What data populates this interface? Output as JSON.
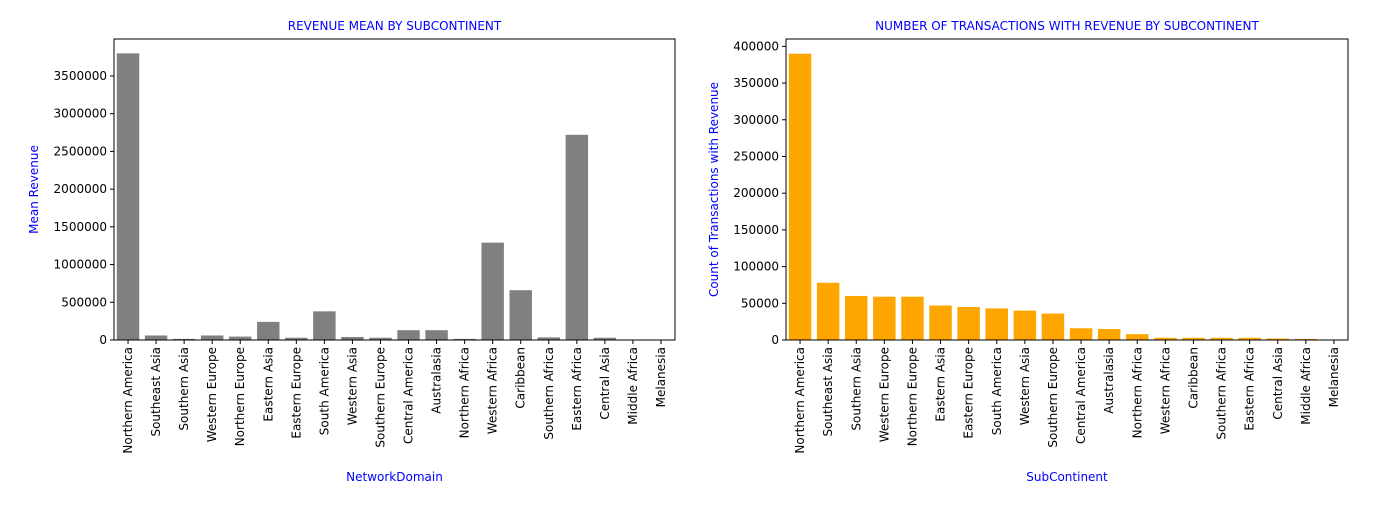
{
  "chart_data": [
    {
      "type": "bar",
      "title": "REVENUE MEAN BY SUBCONTINENT",
      "xlabel": "NetworkDomain",
      "ylabel": "Mean Revenue",
      "color": "#808080",
      "label_color": "#0000ff",
      "ylim": [
        0,
        3990000
      ],
      "yticks": [
        0,
        500000,
        1000000,
        1500000,
        2000000,
        2500000,
        3000000,
        3500000
      ],
      "categories": [
        "Northern America",
        "Southeast Asia",
        "Southern Asia",
        "Western Europe",
        "Northern Europe",
        "Eastern Asia",
        "Eastern Europe",
        "South America",
        "Western Asia",
        "Southern Europe",
        "Central America",
        "Australasia",
        "Northern Africa",
        "Western Africa",
        "Caribbean",
        "Southern Africa",
        "Eastern Africa",
        "Central Asia",
        "Middle Africa",
        "Melanesia"
      ],
      "values": [
        3800000,
        60000,
        15000,
        60000,
        45000,
        240000,
        30000,
        380000,
        40000,
        30000,
        130000,
        130000,
        15000,
        1290000,
        660000,
        35000,
        2720000,
        30000,
        5000,
        3000
      ]
    },
    {
      "type": "bar",
      "title": "NUMBER OF TRANSACTIONS WITH REVENUE BY SUBCONTINENT",
      "xlabel": "SubContinent",
      "ylabel": "Count of Transactions with Revenue",
      "color": "#ffa500",
      "label_color": "#0000ff",
      "ylim": [
        0,
        410000
      ],
      "yticks": [
        0,
        50000,
        100000,
        150000,
        200000,
        250000,
        300000,
        350000,
        400000
      ],
      "categories": [
        "Northern America",
        "Southeast Asia",
        "Southern Asia",
        "Western Europe",
        "Northern Europe",
        "Eastern Asia",
        "Eastern Europe",
        "South America",
        "Western Asia",
        "Southern Europe",
        "Central America",
        "Australasia",
        "Northern Africa",
        "Western Africa",
        "Caribbean",
        "Southern Africa",
        "Eastern Africa",
        "Central Asia",
        "Middle Africa",
        "Melanesia"
      ],
      "values": [
        390000,
        78000,
        60000,
        59000,
        59000,
        47000,
        45000,
        43000,
        40000,
        36000,
        16000,
        15000,
        8000,
        3000,
        3000,
        3000,
        3000,
        2000,
        1500,
        500
      ]
    }
  ]
}
